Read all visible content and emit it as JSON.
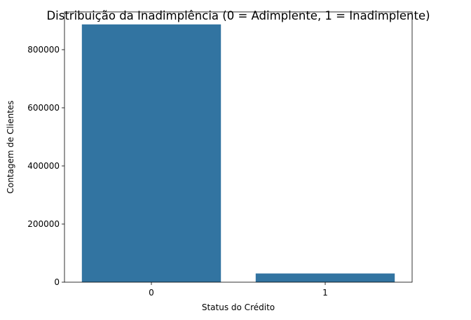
{
  "chart_data": {
    "type": "bar",
    "title": "Distribuição da Inadimplência (0 = Adimplente, 1 = Inadimplente)",
    "xlabel": "Status do Crédito",
    "ylabel": "Contagem de Clientes",
    "categories": [
      "0",
      "1"
    ],
    "values": [
      887000,
      30000
    ],
    "ylim": [
      0,
      930000
    ],
    "yticks": [
      0,
      200000,
      400000,
      600000,
      800000
    ],
    "grid": false,
    "bar_color": "#3274a1"
  }
}
